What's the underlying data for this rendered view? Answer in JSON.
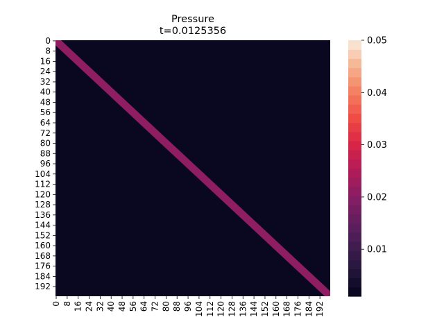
{
  "chart_data": {
    "type": "heatmap",
    "title": "Pressure",
    "subtitle": "t=0.0125356",
    "xlabel": "",
    "ylabel": "",
    "n_rows": 200,
    "n_cols": 200,
    "background_value": 0.002,
    "band": {
      "description_value": 0.021,
      "x_start": 0,
      "y_start": 0,
      "x_end": 199,
      "y_end": 199,
      "half_width_cells": 4
    },
    "x_tick_labels": [
      "0",
      "8",
      "16",
      "24",
      "32",
      "40",
      "48",
      "56",
      "64",
      "72",
      "80",
      "88",
      "96",
      "104",
      "112",
      "120",
      "128",
      "136",
      "144",
      "152",
      "160",
      "168",
      "176",
      "184",
      "192"
    ],
    "y_tick_labels": [
      "0",
      "8",
      "16",
      "24",
      "32",
      "40",
      "48",
      "56",
      "64",
      "72",
      "80",
      "88",
      "96",
      "104",
      "112",
      "120",
      "128",
      "136",
      "144",
      "152",
      "160",
      "168",
      "176",
      "184",
      "192"
    ],
    "colorbar": {
      "vmin": 0.001,
      "vmax": 0.05,
      "tick_values": [
        0.01,
        0.02,
        0.03,
        0.04,
        0.05
      ],
      "tick_labels": [
        "0.01",
        "0.02",
        "0.03",
        "0.04",
        "0.05"
      ]
    },
    "colormap": "rocket",
    "grid": false,
    "legend": "none"
  }
}
